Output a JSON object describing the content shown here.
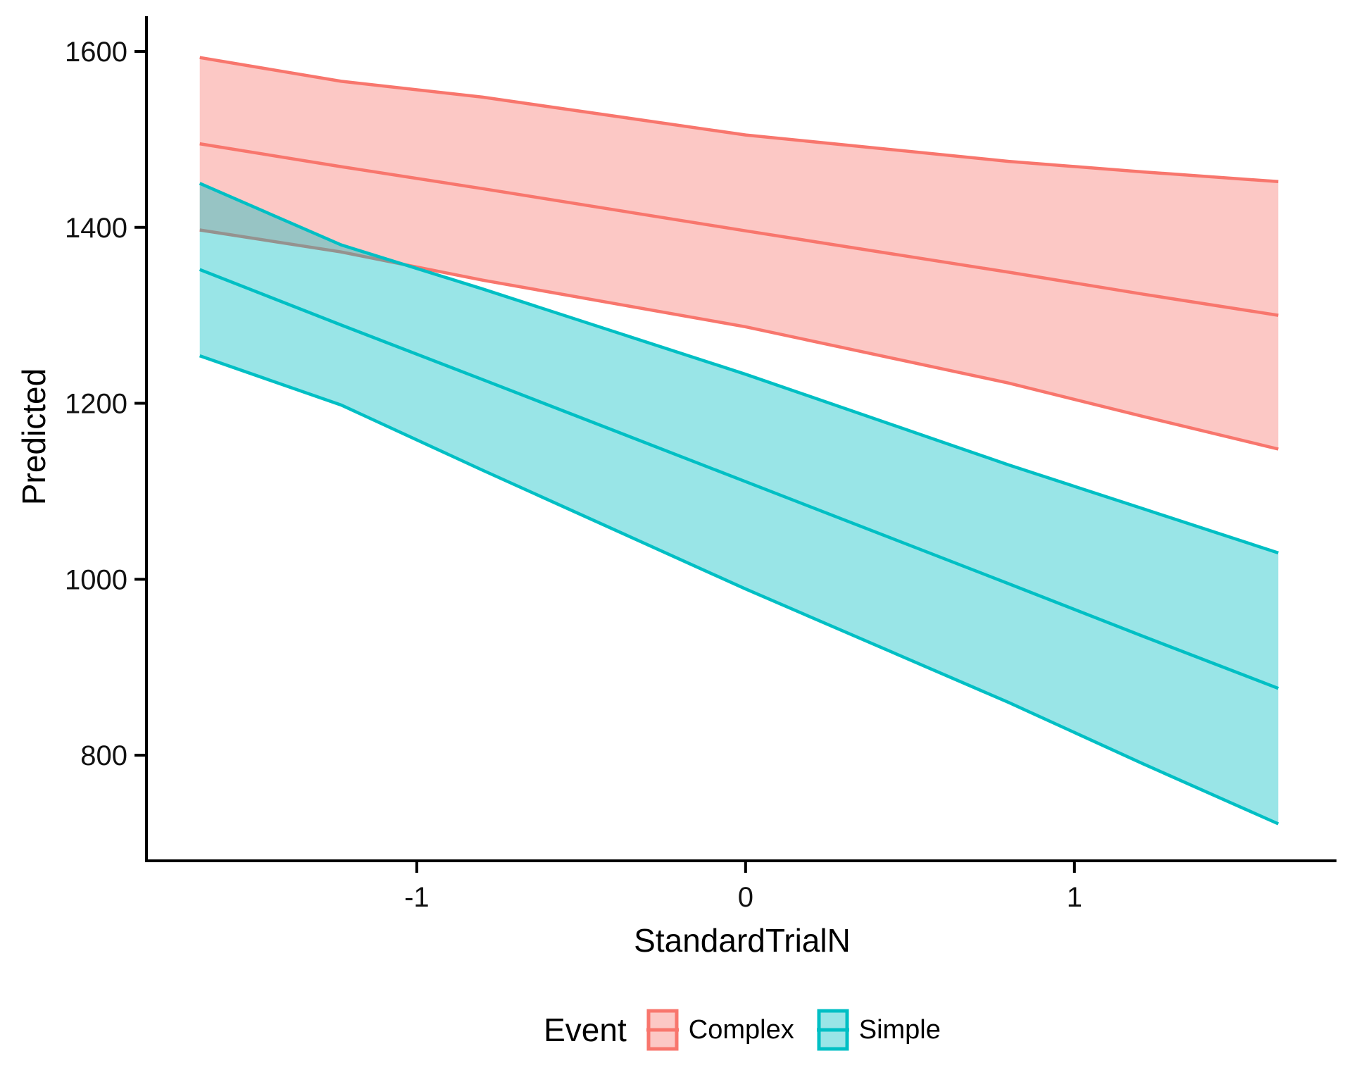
{
  "figure": {
    "background": "#ffffff"
  },
  "chart_data": {
    "type": "line",
    "subtype": "regression-lines-with-confidence-ribbons",
    "title": "",
    "xlabel": "StandardTrialN",
    "ylabel": "Predicted",
    "xlim": [
      -1.822,
      1.797
    ],
    "ylim": [
      680,
      1640
    ],
    "x_ticks": [
      {
        "value": -1,
        "label": "-1"
      },
      {
        "value": 0,
        "label": "0"
      },
      {
        "value": 1,
        "label": "1"
      }
    ],
    "y_ticks": [
      {
        "value": 1600,
        "label": "1600"
      },
      {
        "value": 1400,
        "label": "1400"
      },
      {
        "value": 1200,
        "label": "1200"
      },
      {
        "value": 1000,
        "label": "1000"
      },
      {
        "value": 800,
        "label": "800"
      }
    ],
    "grid": "off",
    "legend_position": "bottom",
    "x": [
      -1.66,
      -1.23,
      -0.8,
      0,
      0.8,
      1.21,
      1.62
    ],
    "series": [
      {
        "name": "Complex",
        "color": "#F8766D",
        "fill_opacity": 0.4,
        "center": [
          1495,
          1469,
          1444,
          1396,
          1349,
          1324,
          1300
        ],
        "upper": [
          1593,
          1566,
          1548,
          1505,
          1475,
          1463,
          1452
        ],
        "lower": [
          1397,
          1372,
          1340,
          1287,
          1223,
          1185,
          1148
        ]
      },
      {
        "name": "Simple",
        "color": "#00BFC4",
        "fill_opacity": 0.4,
        "center": [
          1352,
          1289,
          1227,
          1111,
          995,
          935,
          876
        ],
        "upper": [
          1450,
          1380,
          1330,
          1233,
          1130,
          1080,
          1030
        ],
        "lower": [
          1254,
          1198,
          1124,
          989,
          860,
          790,
          722
        ]
      }
    ]
  },
  "axes": {
    "x_title": "StandardTrialN",
    "y_title": "Predicted",
    "axis_color": "#000000",
    "tick_label_color": "#111111"
  },
  "legend": {
    "title": "Event",
    "items": [
      {
        "label": "Complex",
        "color": "#F8766D"
      },
      {
        "label": "Simple",
        "color": "#00BFC4"
      }
    ]
  }
}
